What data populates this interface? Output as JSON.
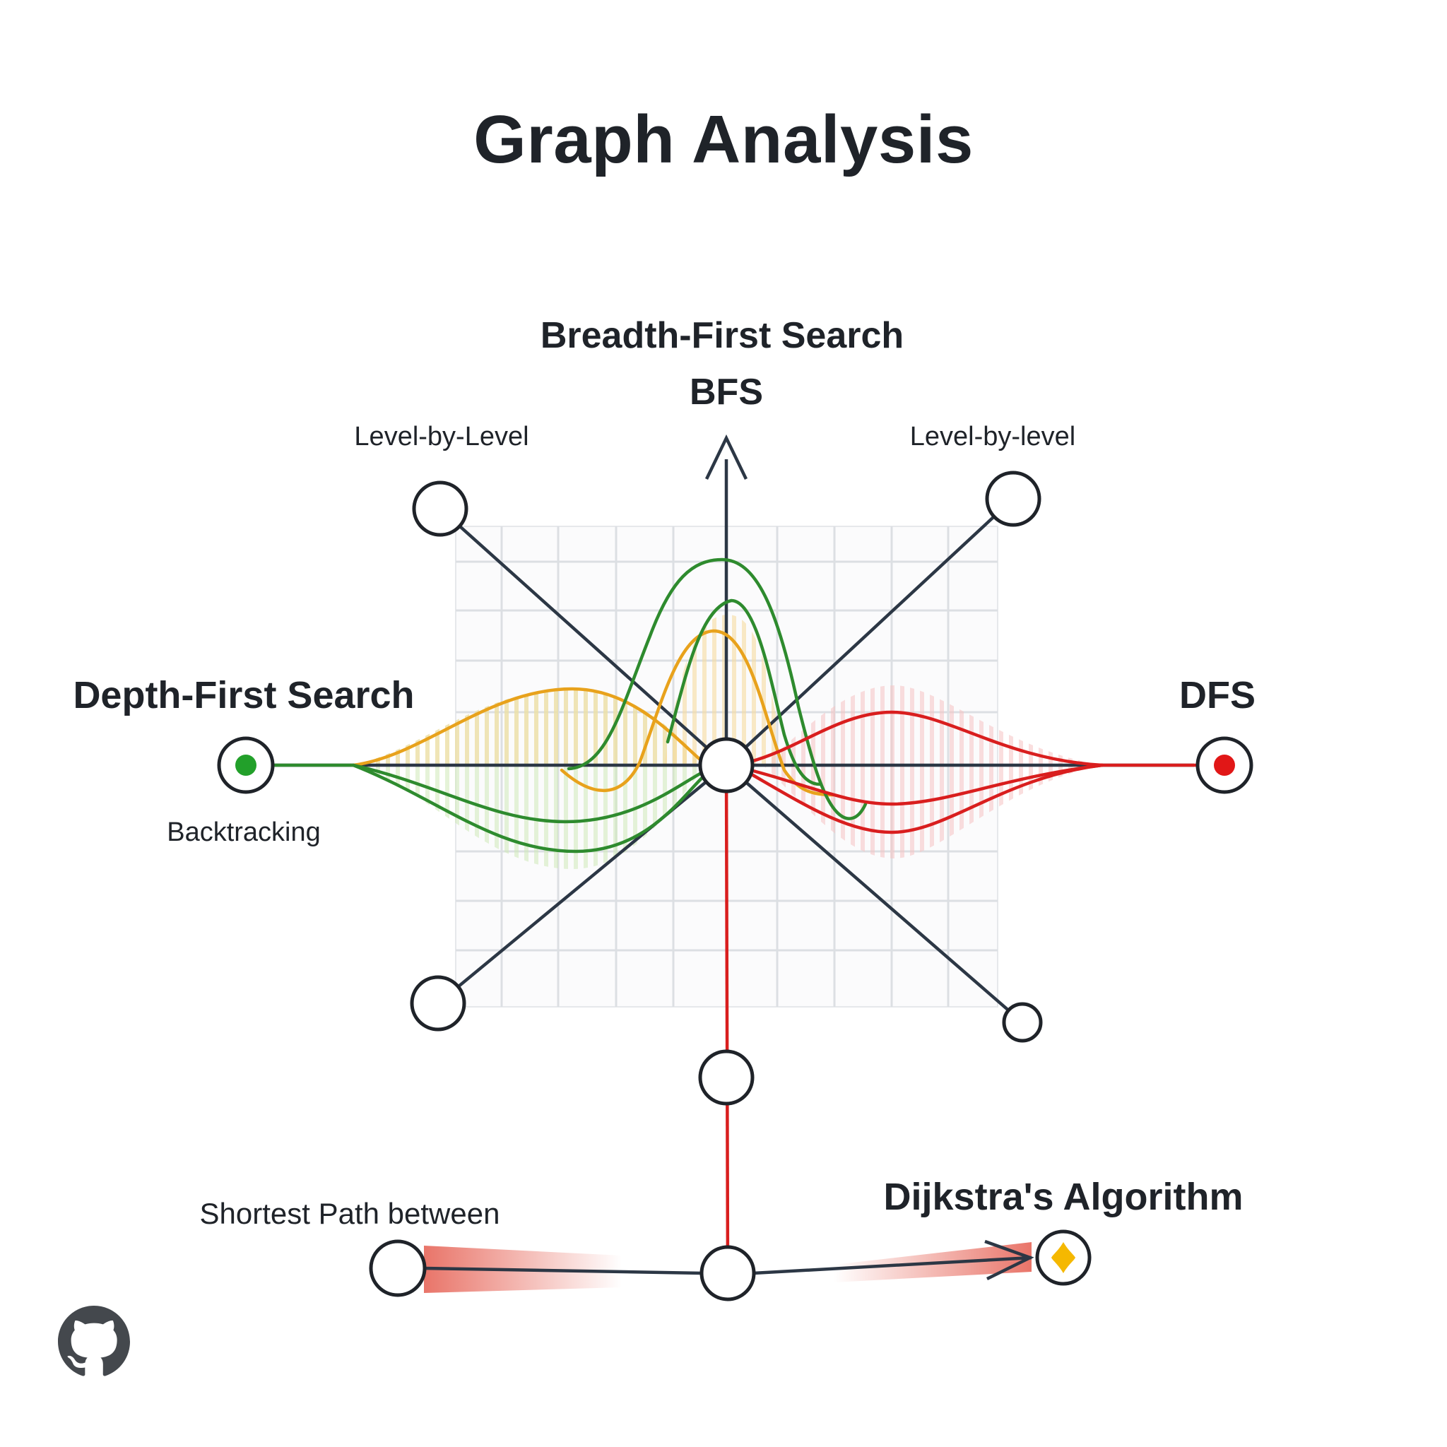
{
  "title": "Graph Analysis",
  "labels": {
    "bfs_name": "Breadth-First Search",
    "bfs_abbr": "BFS",
    "level_left": "Level-by-Level",
    "level_right": "Level-by-level",
    "dfs_name": "Depth-First Search",
    "dfs_abbr": "DFS",
    "backtracking": "Backtracking",
    "shortest_path": "Shortest Path between",
    "dijkstra": "Dijkstra's Algorithm"
  },
  "colors": {
    "edge": "#2c3745",
    "green": "#2e8b2e",
    "orange": "#e8a21c",
    "red": "#d91e1e",
    "gold": "#f5b800",
    "grid": "#dfe2e6",
    "node_stroke": "#1f2329"
  },
  "icons": {
    "footer": "github-icon",
    "target_node": "diamond-icon"
  }
}
